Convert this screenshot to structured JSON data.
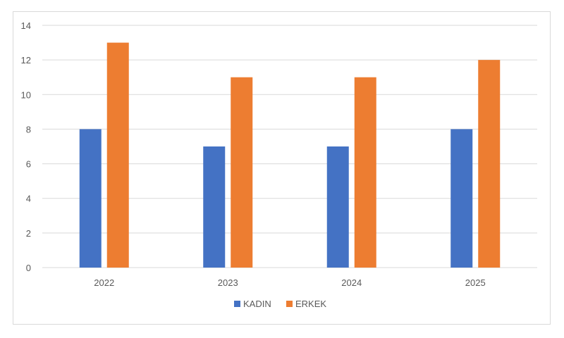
{
  "chart_data": {
    "type": "bar",
    "categories": [
      "2022",
      "2023",
      "2024",
      "2025"
    ],
    "series": [
      {
        "name": "KADIN",
        "values": [
          8,
          7,
          7,
          8
        ],
        "color": "#4472c4"
      },
      {
        "name": "ERKEK",
        "values": [
          13,
          11,
          11,
          12
        ],
        "color": "#ed7d31"
      }
    ],
    "title": "",
    "xlabel": "",
    "ylabel": "",
    "ylim": [
      0,
      14
    ],
    "yticks": [
      "0",
      "2",
      "4",
      "6",
      "8",
      "10",
      "12",
      "14"
    ],
    "grid": true,
    "legend_position": "bottom",
    "gridline_color": "#d9d9d9",
    "axis_color": "#d9d9d9"
  }
}
